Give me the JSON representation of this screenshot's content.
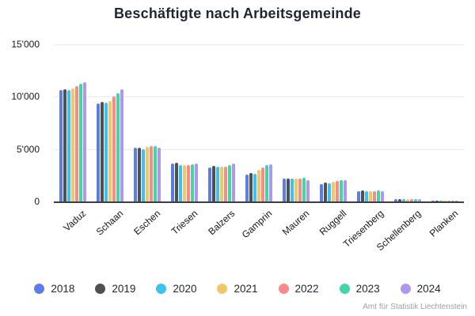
{
  "title": "Beschäftigte nach Arbeitsgemeinde",
  "attribution": "Amt für Statistik Liechtenstein",
  "y_axis": {
    "ticks": [
      {
        "value": 15000,
        "label": "15'000"
      },
      {
        "value": 10000,
        "label": "10'000"
      },
      {
        "value": 5000,
        "label": "5'000"
      },
      {
        "value": 0,
        "label": "0"
      }
    ]
  },
  "chart_data": {
    "type": "bar",
    "title": "Beschäftigte nach Arbeitsgemeinde",
    "xlabel": "",
    "ylabel": "",
    "ylim": [
      0,
      15000
    ],
    "grid": true,
    "legend_position": "bottom",
    "categories": [
      "Vaduz",
      "Schaan",
      "Eschen",
      "Triesen",
      "Balzers",
      "Gamprin",
      "Mauren",
      "Ruggell",
      "Triesenberg",
      "Schellenberg",
      "Planken"
    ],
    "series": [
      {
        "name": "2018",
        "color": "#5B7CE9",
        "values": [
          10600,
          9350,
          5100,
          3650,
          3250,
          2600,
          2150,
          1650,
          950,
          240,
          100
        ]
      },
      {
        "name": "2019",
        "color": "#4E5154",
        "values": [
          10700,
          9500,
          5150,
          3700,
          3400,
          2720,
          2200,
          1780,
          1050,
          250,
          100
        ]
      },
      {
        "name": "2020",
        "color": "#3EC1EF",
        "values": [
          10650,
          9400,
          5000,
          3500,
          3350,
          2670,
          2150,
          1700,
          950,
          240,
          100
        ]
      },
      {
        "name": "2021",
        "color": "#EFC969",
        "values": [
          10800,
          9550,
          5200,
          3500,
          3350,
          3000,
          2150,
          1850,
          980,
          250,
          100
        ]
      },
      {
        "name": "2022",
        "color": "#F98B86",
        "values": [
          11000,
          10050,
          5250,
          3450,
          3350,
          3230,
          2200,
          1950,
          980,
          260,
          100
        ]
      },
      {
        "name": "2023",
        "color": "#42D6A4",
        "values": [
          11200,
          10350,
          5250,
          3550,
          3450,
          3440,
          2250,
          2050,
          1050,
          260,
          100
        ]
      },
      {
        "name": "2024",
        "color": "#AE97ED",
        "values": [
          11350,
          10700,
          5150,
          3600,
          3600,
          3580,
          2050,
          2050,
          980,
          250,
          100
        ]
      }
    ]
  }
}
